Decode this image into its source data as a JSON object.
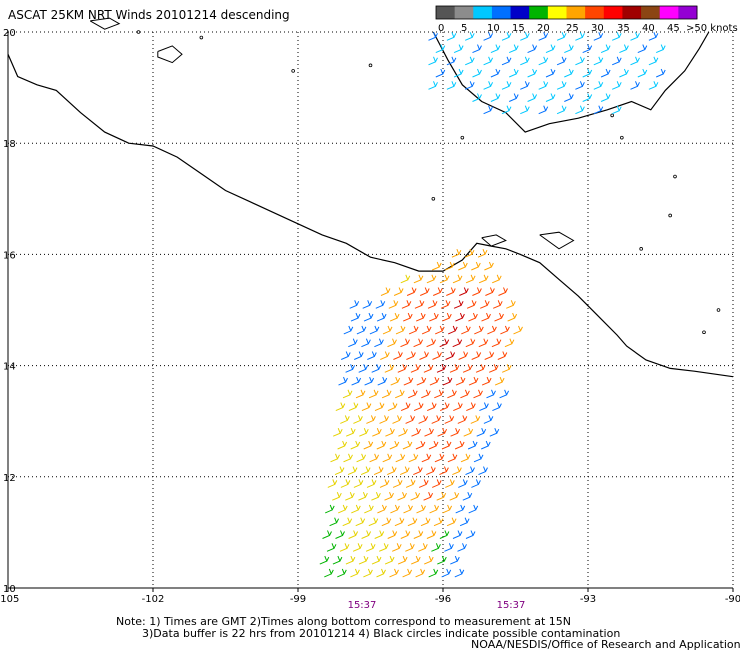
{
  "map": {
    "title": "ASCAT 25KM NRT Winds 20101214 descending",
    "lat_range": [
      10,
      20
    ],
    "lon_range": [
      -105,
      -90
    ],
    "lat_labels": [
      "20",
      "18",
      "16",
      "14",
      "12",
      "10"
    ],
    "lon_labels": [
      "-105",
      "-102",
      "-99",
      "-96",
      "-93",
      "-90"
    ],
    "time_labels": [
      "15:37",
      "15:37"
    ],
    "time_label_color": "#800080",
    "legend": {
      "ticks": [
        "0",
        "5",
        "10",
        "15",
        "20",
        "25",
        "30",
        "35",
        "40",
        "45",
        ">50 knots"
      ],
      "colors": [
        "#555555",
        "#8c8c8c",
        "#00c8ff",
        "#0070ff",
        "#0000c8",
        "#00b400",
        "#ffff00",
        "#ffa500",
        "#ff4500",
        "#ff0000",
        "#a00000",
        "#8b4513",
        "#ff00ff",
        "#9400d3"
      ]
    },
    "notes": [
      "Note: 1) Times are GMT 2)Times along bottom correspond to measurement at 15N",
      "3)Data buffer is 22 hrs from 20101214 4) Black circles indicate possible contamination",
      "NOAA/NESDIS/Office of Research and Applications"
    ]
  }
}
